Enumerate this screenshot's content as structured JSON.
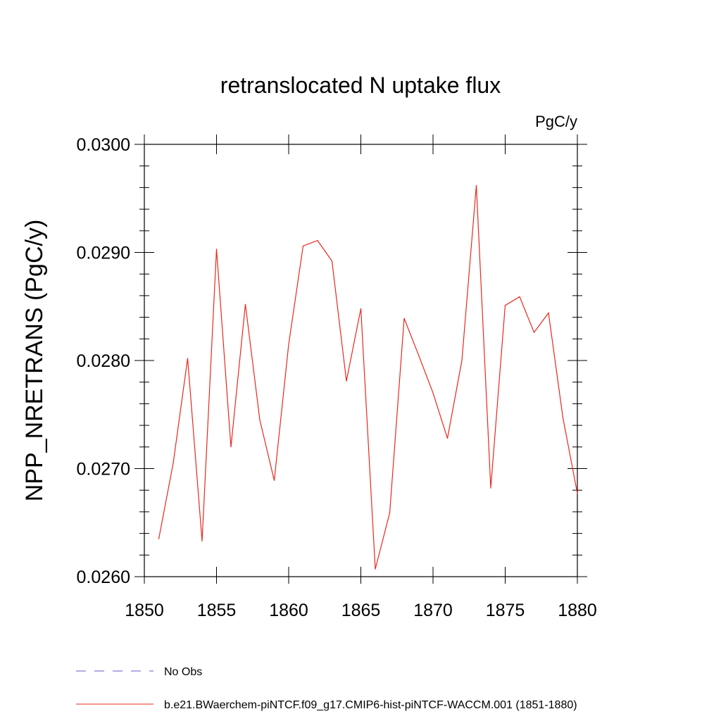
{
  "chart_data": {
    "type": "line",
    "title": "retranslocated N uptake flux",
    "units_label": "PgC/y",
    "ylabel": "NPP_NRETRANS  (PgC/y)",
    "xlabel": "",
    "xlim": [
      1850,
      1880
    ],
    "ylim": [
      0.026,
      0.03
    ],
    "x_ticks": [
      1850,
      1855,
      1860,
      1865,
      1870,
      1875,
      1880
    ],
    "x_tick_labels": [
      "1850",
      "1855",
      "1860",
      "1865",
      "1870",
      "1875",
      "1880"
    ],
    "y_ticks": [
      0.026,
      0.027,
      0.028,
      0.029,
      0.03
    ],
    "y_tick_labels": [
      "0.0260",
      "0.0270",
      "0.0280",
      "0.0290",
      "0.0300"
    ],
    "grid": false,
    "legend_placement": "bottom",
    "legend": [
      {
        "label": "No Obs",
        "color": "#6a5acd",
        "style": "dashed"
      },
      {
        "label": "b.e21.BWaerchem-piNTCF.f09_g17.CMIP6-hist-piNTCF-WACCM.001 (1851-1880)",
        "color": "#e8281e",
        "style": "solid"
      }
    ],
    "series": [
      {
        "color": "#e8281e",
        "x": [
          1851,
          1852,
          1853,
          1854,
          1855,
          1856,
          1857,
          1858,
          1859,
          1860,
          1861,
          1862,
          1863,
          1864,
          1865,
          1866,
          1867,
          1868,
          1869,
          1870,
          1871,
          1872,
          1873,
          1874,
          1875,
          1876,
          1877,
          1878,
          1879,
          1880
        ],
        "values": [
          0.02635,
          0.02705,
          0.02802,
          0.02633,
          0.02903,
          0.0272,
          0.02852,
          0.02745,
          0.02689,
          0.02815,
          0.02906,
          0.02911,
          0.02892,
          0.02781,
          0.02848,
          0.02607,
          0.02659,
          0.02839,
          0.02805,
          0.0277,
          0.02728,
          0.028,
          0.02962,
          0.02682,
          0.02851,
          0.02859,
          0.02826,
          0.02844,
          0.02747,
          0.02677
        ]
      }
    ]
  }
}
